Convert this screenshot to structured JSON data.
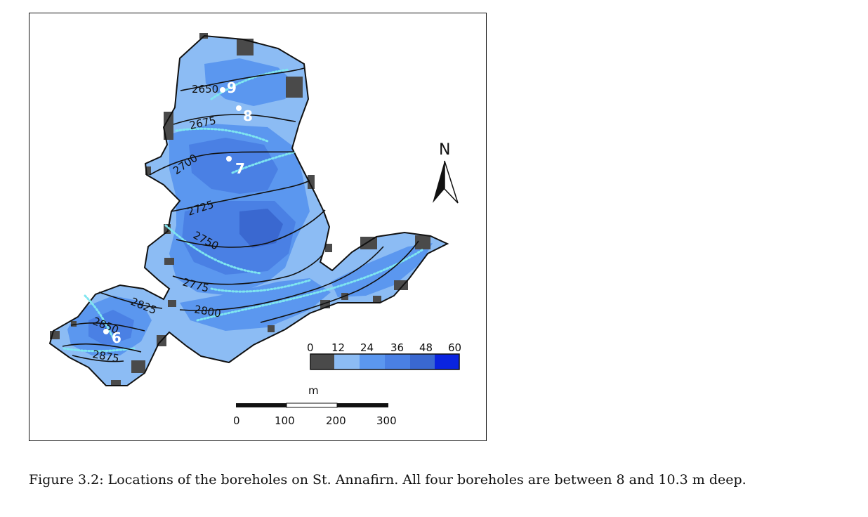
{
  "caption": "Figure 3.2: Locations of the boreholes on St. Annafirn. All four boreholes are between 8 and 10.3 m deep.",
  "map": {
    "contours": [
      "2650",
      "2675",
      "2700",
      "2725",
      "2750",
      "2775",
      "2800",
      "2825",
      "2850",
      "2875"
    ],
    "boreholes": [
      "9",
      "8",
      "7",
      "6"
    ],
    "north_label": "N",
    "legend": {
      "ticks": [
        "0",
        "12",
        "24",
        "36",
        "48",
        "60"
      ],
      "colors": [
        "#4a4a4a",
        "#8cbcf4",
        "#5b97ef",
        "#4a80e4",
        "#3a68d0",
        "#0a24e0"
      ]
    },
    "scale_bar": {
      "unit": "m",
      "ticks": [
        "0",
        "100",
        "200",
        "300"
      ]
    },
    "colors": {
      "glacier_light": "#8cbcf4",
      "glacier_mid": "#5b97ef",
      "glacier_deep": "#4a80e4",
      "glacier_deepest": "#3a68d0",
      "rock": "#4a4a4a",
      "streams": "#7fe6f0"
    }
  }
}
